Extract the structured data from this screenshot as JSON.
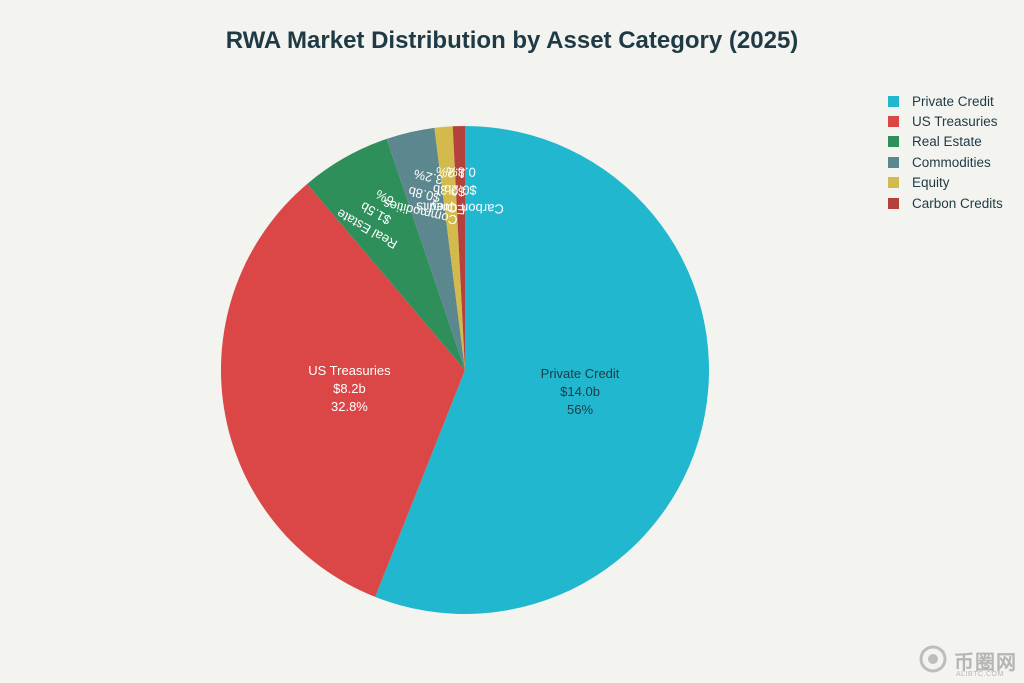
{
  "chart_data": {
    "type": "pie",
    "title": "RWA Market Distribution by Asset Category (2025)",
    "legend_position": "top-right",
    "slices": [
      {
        "label": "Private Credit",
        "value": 14.0,
        "value_label": "$14.0b",
        "percent_label": "56%",
        "color": "#21b8cf"
      },
      {
        "label": "US Treasuries",
        "value": 8.2,
        "value_label": "$8.2b",
        "percent_label": "32.8%",
        "color": "#db4646"
      },
      {
        "label": "Real Estate",
        "value": 1.5,
        "value_label": "$1.5b",
        "percent_label": "6%",
        "color": "#2f8f5b"
      },
      {
        "label": "Commodities",
        "value": 0.8,
        "value_label": "$0.8b",
        "percent_label": "3.2%",
        "color": "#5d878f"
      },
      {
        "label": "Equity",
        "value": 0.3,
        "value_label": "$0.3b",
        "percent_label": "1.2%",
        "color": "#d2ba4c"
      },
      {
        "label": "Carbon Credits",
        "value": 0.2,
        "value_label": "$0.2b",
        "percent_label": "0.8%",
        "color": "#b4413c"
      }
    ]
  },
  "watermark": {
    "text": "币圈网",
    "subtext": "ALIBTC.COM"
  }
}
